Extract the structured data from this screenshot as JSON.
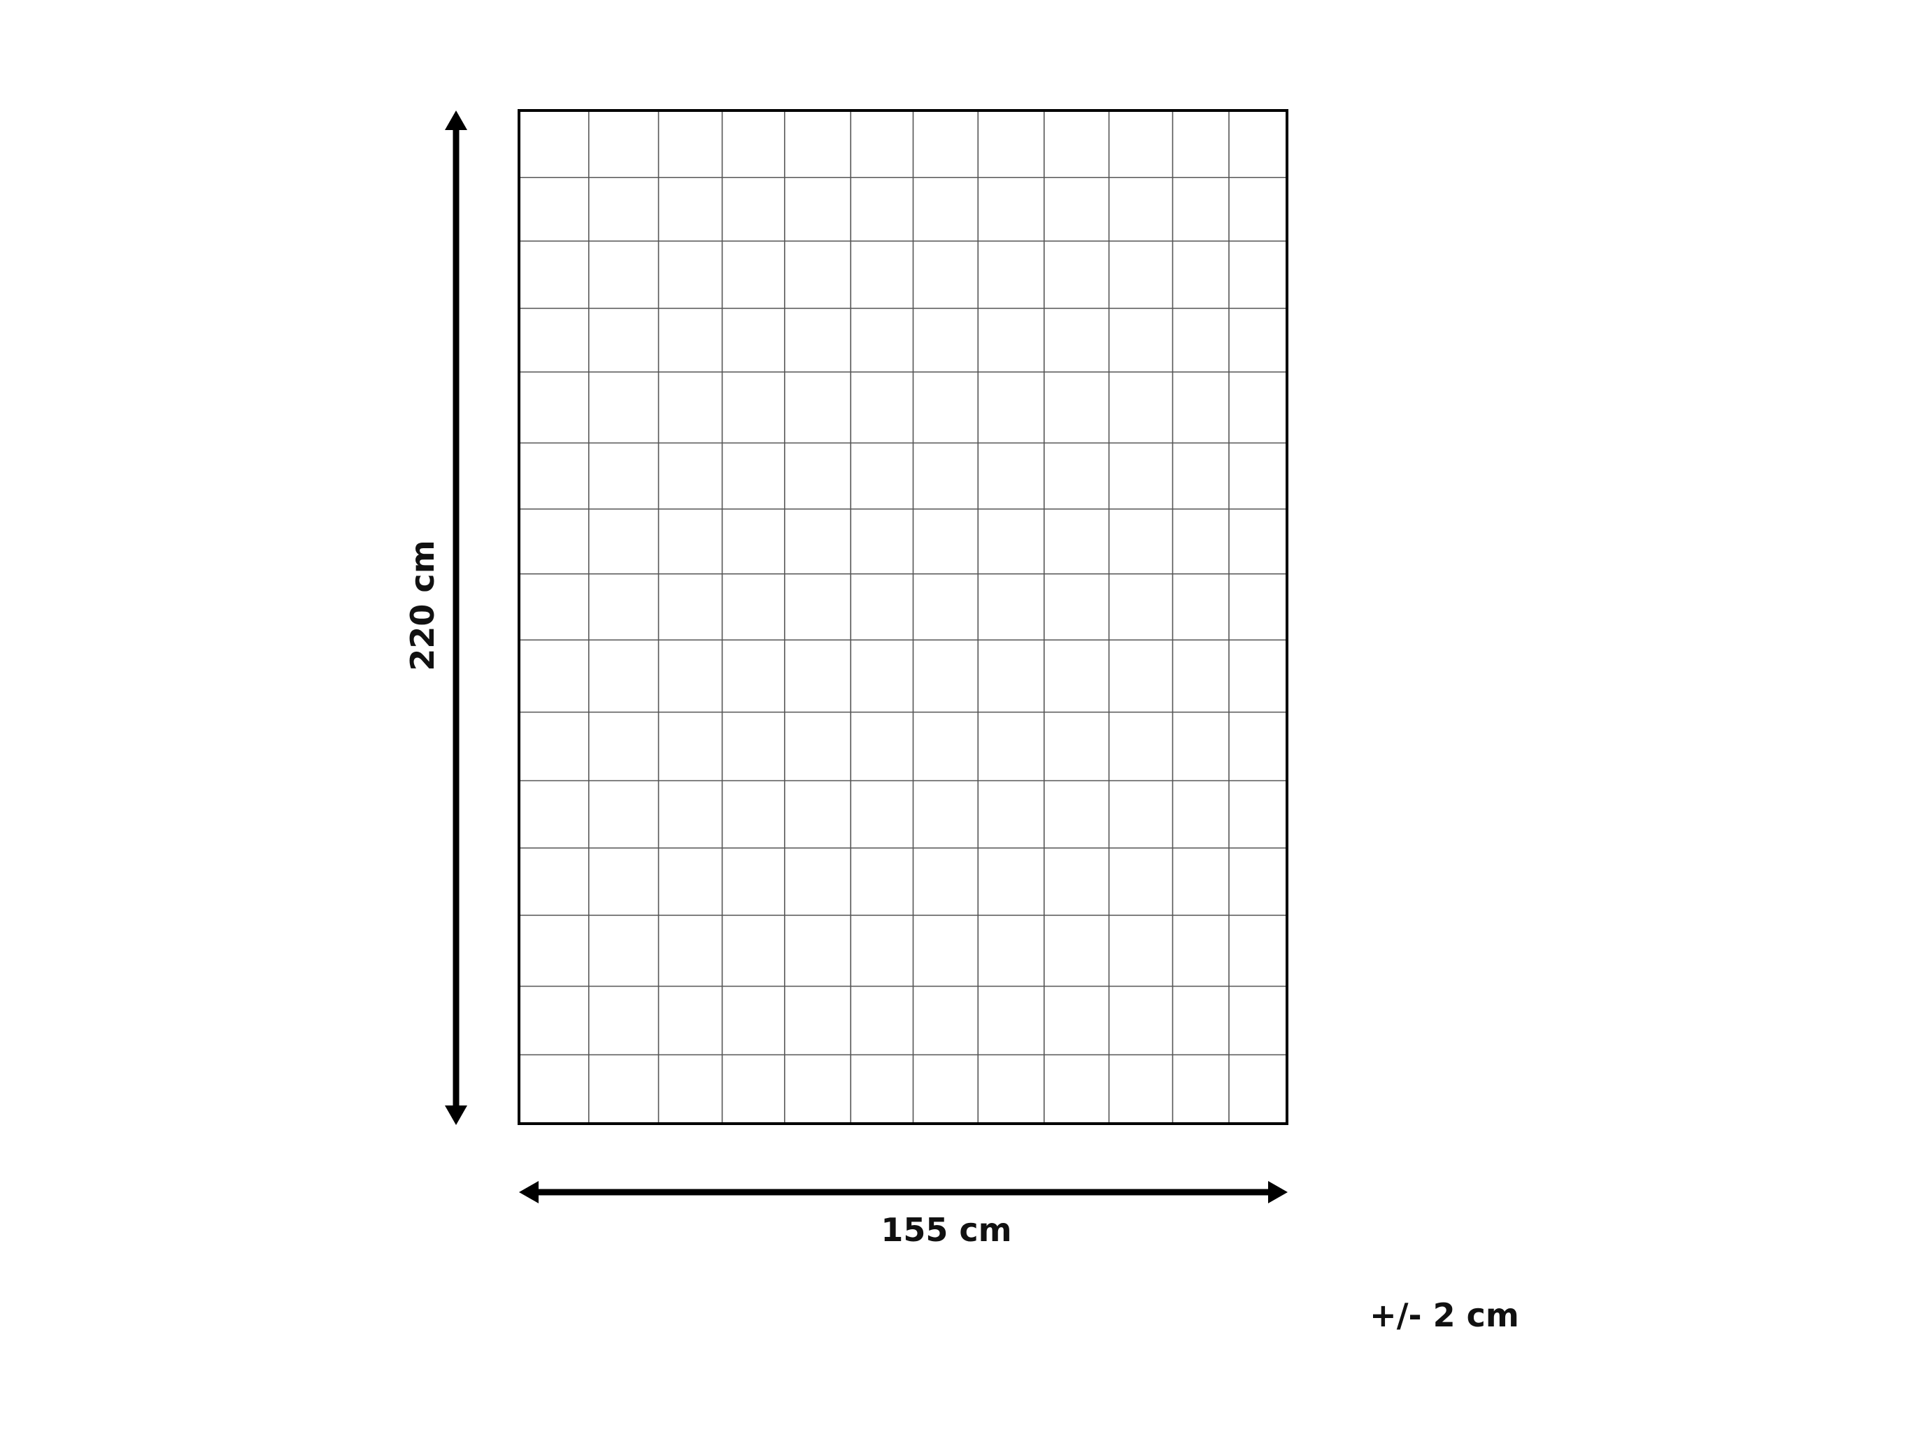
{
  "dimensions": {
    "height_label": "220 cm",
    "width_label": "155 cm",
    "tolerance_label": "+/- 2 cm"
  },
  "colors": {
    "outline": "#000000",
    "grid": "#555555",
    "background": "#ffffff"
  }
}
